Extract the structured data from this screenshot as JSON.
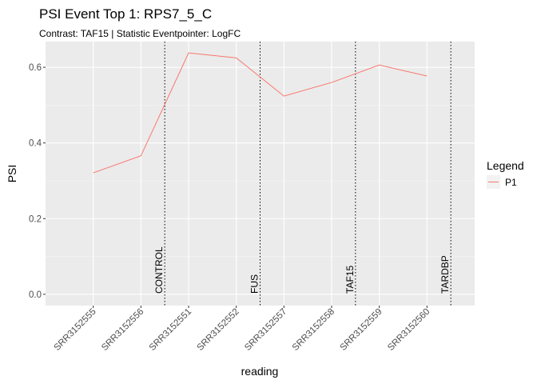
{
  "chart_data": {
    "type": "line",
    "title": "PSI Event Top 1: RPS7_5_C",
    "subtitle": "Contrast: TAF15 | Statistic Eventpointer: LogFC",
    "xlabel": "reading",
    "ylabel": "PSI",
    "categories": [
      "SRR3152555",
      "SRR3152556",
      "SRR3152551",
      "SRR3152552",
      "SRR3152557",
      "SRR3152558",
      "SRR3152559",
      "SRR3152560"
    ],
    "series": [
      {
        "name": "P1",
        "color": "#F8766D",
        "values": [
          0.321,
          0.366,
          0.638,
          0.625,
          0.524,
          0.56,
          0.606,
          0.577
        ]
      }
    ],
    "ylim": [
      -0.03,
      0.668
    ],
    "yticks": [
      0.0,
      0.2,
      0.4,
      0.6
    ],
    "ytick_labels": [
      "0.0",
      "0.2",
      "0.4",
      "0.6"
    ],
    "group_separators": [
      {
        "label": "CONTROL",
        "position": 2.5
      },
      {
        "label": "FUS",
        "position": 4.5
      },
      {
        "label": "TAF15",
        "position": 6.5
      },
      {
        "label": "TARDBP",
        "position": 8.5
      }
    ],
    "legend": {
      "title": "Legend",
      "position": "right"
    },
    "grid": true,
    "panel_background": "#EBEBEB"
  }
}
